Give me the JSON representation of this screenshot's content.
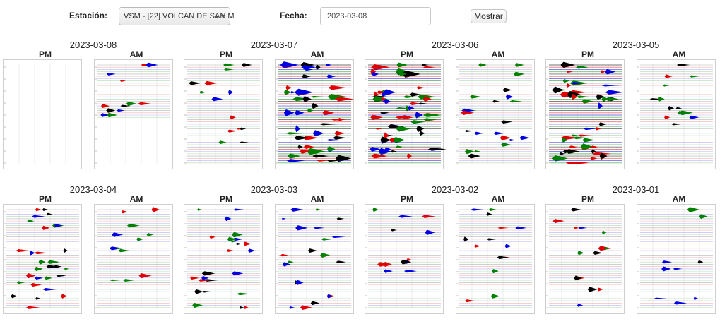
{
  "controls": {
    "station_label": "Estación:",
    "station_value": "VSM - [22] VOLCAN DE SAN M",
    "date_label": "Fecha:",
    "date_value": "2023-03-08",
    "show_button": "Mostrar"
  },
  "days": [
    {
      "date": "2023-03-08",
      "pm_label": "PM",
      "am_label": "AM"
    },
    {
      "date": "2023-03-07",
      "pm_label": "PM",
      "am_label": "AM"
    },
    {
      "date": "2023-03-06",
      "pm_label": "PM",
      "am_label": "AM"
    },
    {
      "date": "2023-03-05",
      "pm_label": "PM",
      "am_label": "AM"
    },
    {
      "date": "2023-03-04",
      "pm_label": "PM",
      "am_label": "AM"
    },
    {
      "date": "2023-03-03",
      "pm_label": "PM",
      "am_label": "AM"
    },
    {
      "date": "2023-03-02",
      "pm_label": "PM",
      "am_label": "AM"
    },
    {
      "date": "2023-03-01",
      "pm_label": "PM",
      "am_label": "AM"
    }
  ],
  "trace_colors": [
    "#000000",
    "#e00000",
    "#0000e0",
    "#008000"
  ],
  "activity": {
    "2023-03-08": {
      "pm": "empty",
      "am": "partial"
    },
    "2023-03-07": {
      "pm": "medium",
      "am": "high"
    },
    "2023-03-06": {
      "pm": "high",
      "am": "medium"
    },
    "2023-03-05": {
      "pm": "high",
      "am": "medium"
    },
    "2023-03-04": {
      "pm": "medium",
      "am": "medium"
    },
    "2023-03-03": {
      "pm": "medium",
      "am": "low"
    },
    "2023-03-02": {
      "pm": "low",
      "am": "medium"
    },
    "2023-03-01": {
      "pm": "low",
      "am": "low"
    }
  }
}
